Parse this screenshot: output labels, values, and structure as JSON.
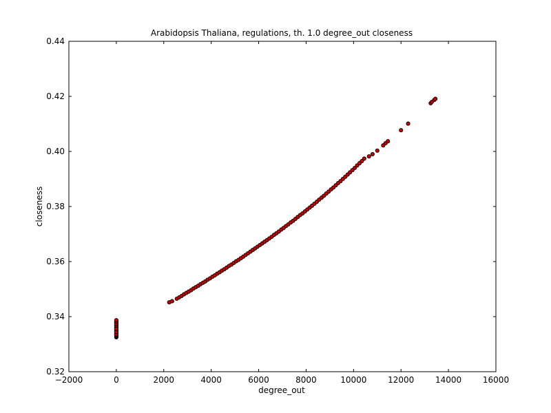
{
  "chart_data": {
    "type": "scatter",
    "title": "Arabidopsis Thaliana, regulations, th. 1.0 degree_out closeness",
    "xlabel": "degree_out",
    "ylabel": "closeness",
    "xlim": [
      -2000,
      16000
    ],
    "ylim": [
      0.32,
      0.44
    ],
    "xticks": [
      "−2000",
      "0",
      "2000",
      "4000",
      "6000",
      "8000",
      "10000",
      "12000",
      "14000",
      "16000"
    ],
    "yticks": [
      "0.32",
      "0.34",
      "0.36",
      "0.38",
      "0.40",
      "0.42",
      "0.44"
    ],
    "xtick_values": [
      -2000,
      0,
      2000,
      4000,
      6000,
      8000,
      10000,
      12000,
      14000,
      16000
    ],
    "ytick_values": [
      0.32,
      0.34,
      0.36,
      0.38,
      0.4,
      0.42,
      0.44
    ],
    "grid": false,
    "marker_fill": "#cc0000",
    "marker_edge": "#000000",
    "series": [
      {
        "x": [
          0,
          0,
          0,
          0,
          0,
          0,
          0,
          0,
          0,
          0,
          0,
          0,
          0,
          0,
          0,
          0,
          0,
          0,
          0,
          0,
          0,
          0,
          0,
          0,
          0,
          0,
          0,
          0,
          2230,
          2350,
          2550,
          2650,
          2750,
          2850,
          2950,
          3050,
          3150,
          3250,
          3350,
          3450,
          3550,
          3650,
          3750,
          3850,
          3950,
          4050,
          4150,
          4250,
          4350,
          4450,
          4550,
          4650,
          4750,
          4850,
          4950,
          5050,
          5150,
          5250,
          5350,
          5450,
          5550,
          5650,
          5750,
          5850,
          5950,
          6050,
          6150,
          6250,
          6350,
          6450,
          6550,
          6650,
          6750,
          6850,
          6950,
          7050,
          7150,
          7250,
          7350,
          7450,
          7550,
          7650,
          7750,
          7850,
          7950,
          8050,
          8150,
          8250,
          8350,
          8450,
          8550,
          8650,
          8750,
          8850,
          8950,
          9050,
          9150,
          9250,
          9350,
          9450,
          9550,
          9650,
          9750,
          9850,
          9950,
          10050,
          10150,
          10250,
          10350,
          10450,
          10650,
          10800,
          11000,
          11250,
          11350,
          11450,
          12000,
          12300,
          13250,
          13300,
          13400,
          13450
        ],
        "y": [
          0.3325,
          0.3328,
          0.3331,
          0.3334,
          0.3337,
          0.334,
          0.3343,
          0.3346,
          0.3349,
          0.3352,
          0.3355,
          0.3358,
          0.3361,
          0.3364,
          0.3367,
          0.337,
          0.3373,
          0.3376,
          0.3379,
          0.3382,
          0.3385,
          0.3336,
          0.3344,
          0.3356,
          0.3368,
          0.3374,
          0.3381,
          0.3387,
          0.3452,
          0.3456,
          0.3465,
          0.347,
          0.3475,
          0.3481,
          0.3486,
          0.3491,
          0.3496,
          0.3502,
          0.3507,
          0.3512,
          0.3518,
          0.3523,
          0.3528,
          0.3534,
          0.3539,
          0.3545,
          0.355,
          0.3556,
          0.3561,
          0.3567,
          0.3572,
          0.3578,
          0.3584,
          0.3589,
          0.3595,
          0.3601,
          0.3606,
          0.3612,
          0.3618,
          0.3624,
          0.363,
          0.3636,
          0.3642,
          0.3648,
          0.3654,
          0.366,
          0.3666,
          0.3672,
          0.3678,
          0.3684,
          0.369,
          0.3697,
          0.3703,
          0.3709,
          0.3716,
          0.3722,
          0.3729,
          0.3735,
          0.3742,
          0.3748,
          0.3755,
          0.3762,
          0.3769,
          0.3775,
          0.3782,
          0.3789,
          0.3796,
          0.3803,
          0.381,
          0.3817,
          0.3825,
          0.3832,
          0.3839,
          0.3847,
          0.3854,
          0.3862,
          0.3869,
          0.3877,
          0.3885,
          0.3892,
          0.39,
          0.3908,
          0.3916,
          0.3924,
          0.3932,
          0.394,
          0.3949,
          0.3957,
          0.3965,
          0.3974,
          0.3982,
          0.399,
          0.4003,
          0.4022,
          0.403,
          0.4037,
          0.4077,
          0.4101,
          0.4175,
          0.418,
          0.4187,
          0.4191
        ]
      }
    ]
  }
}
